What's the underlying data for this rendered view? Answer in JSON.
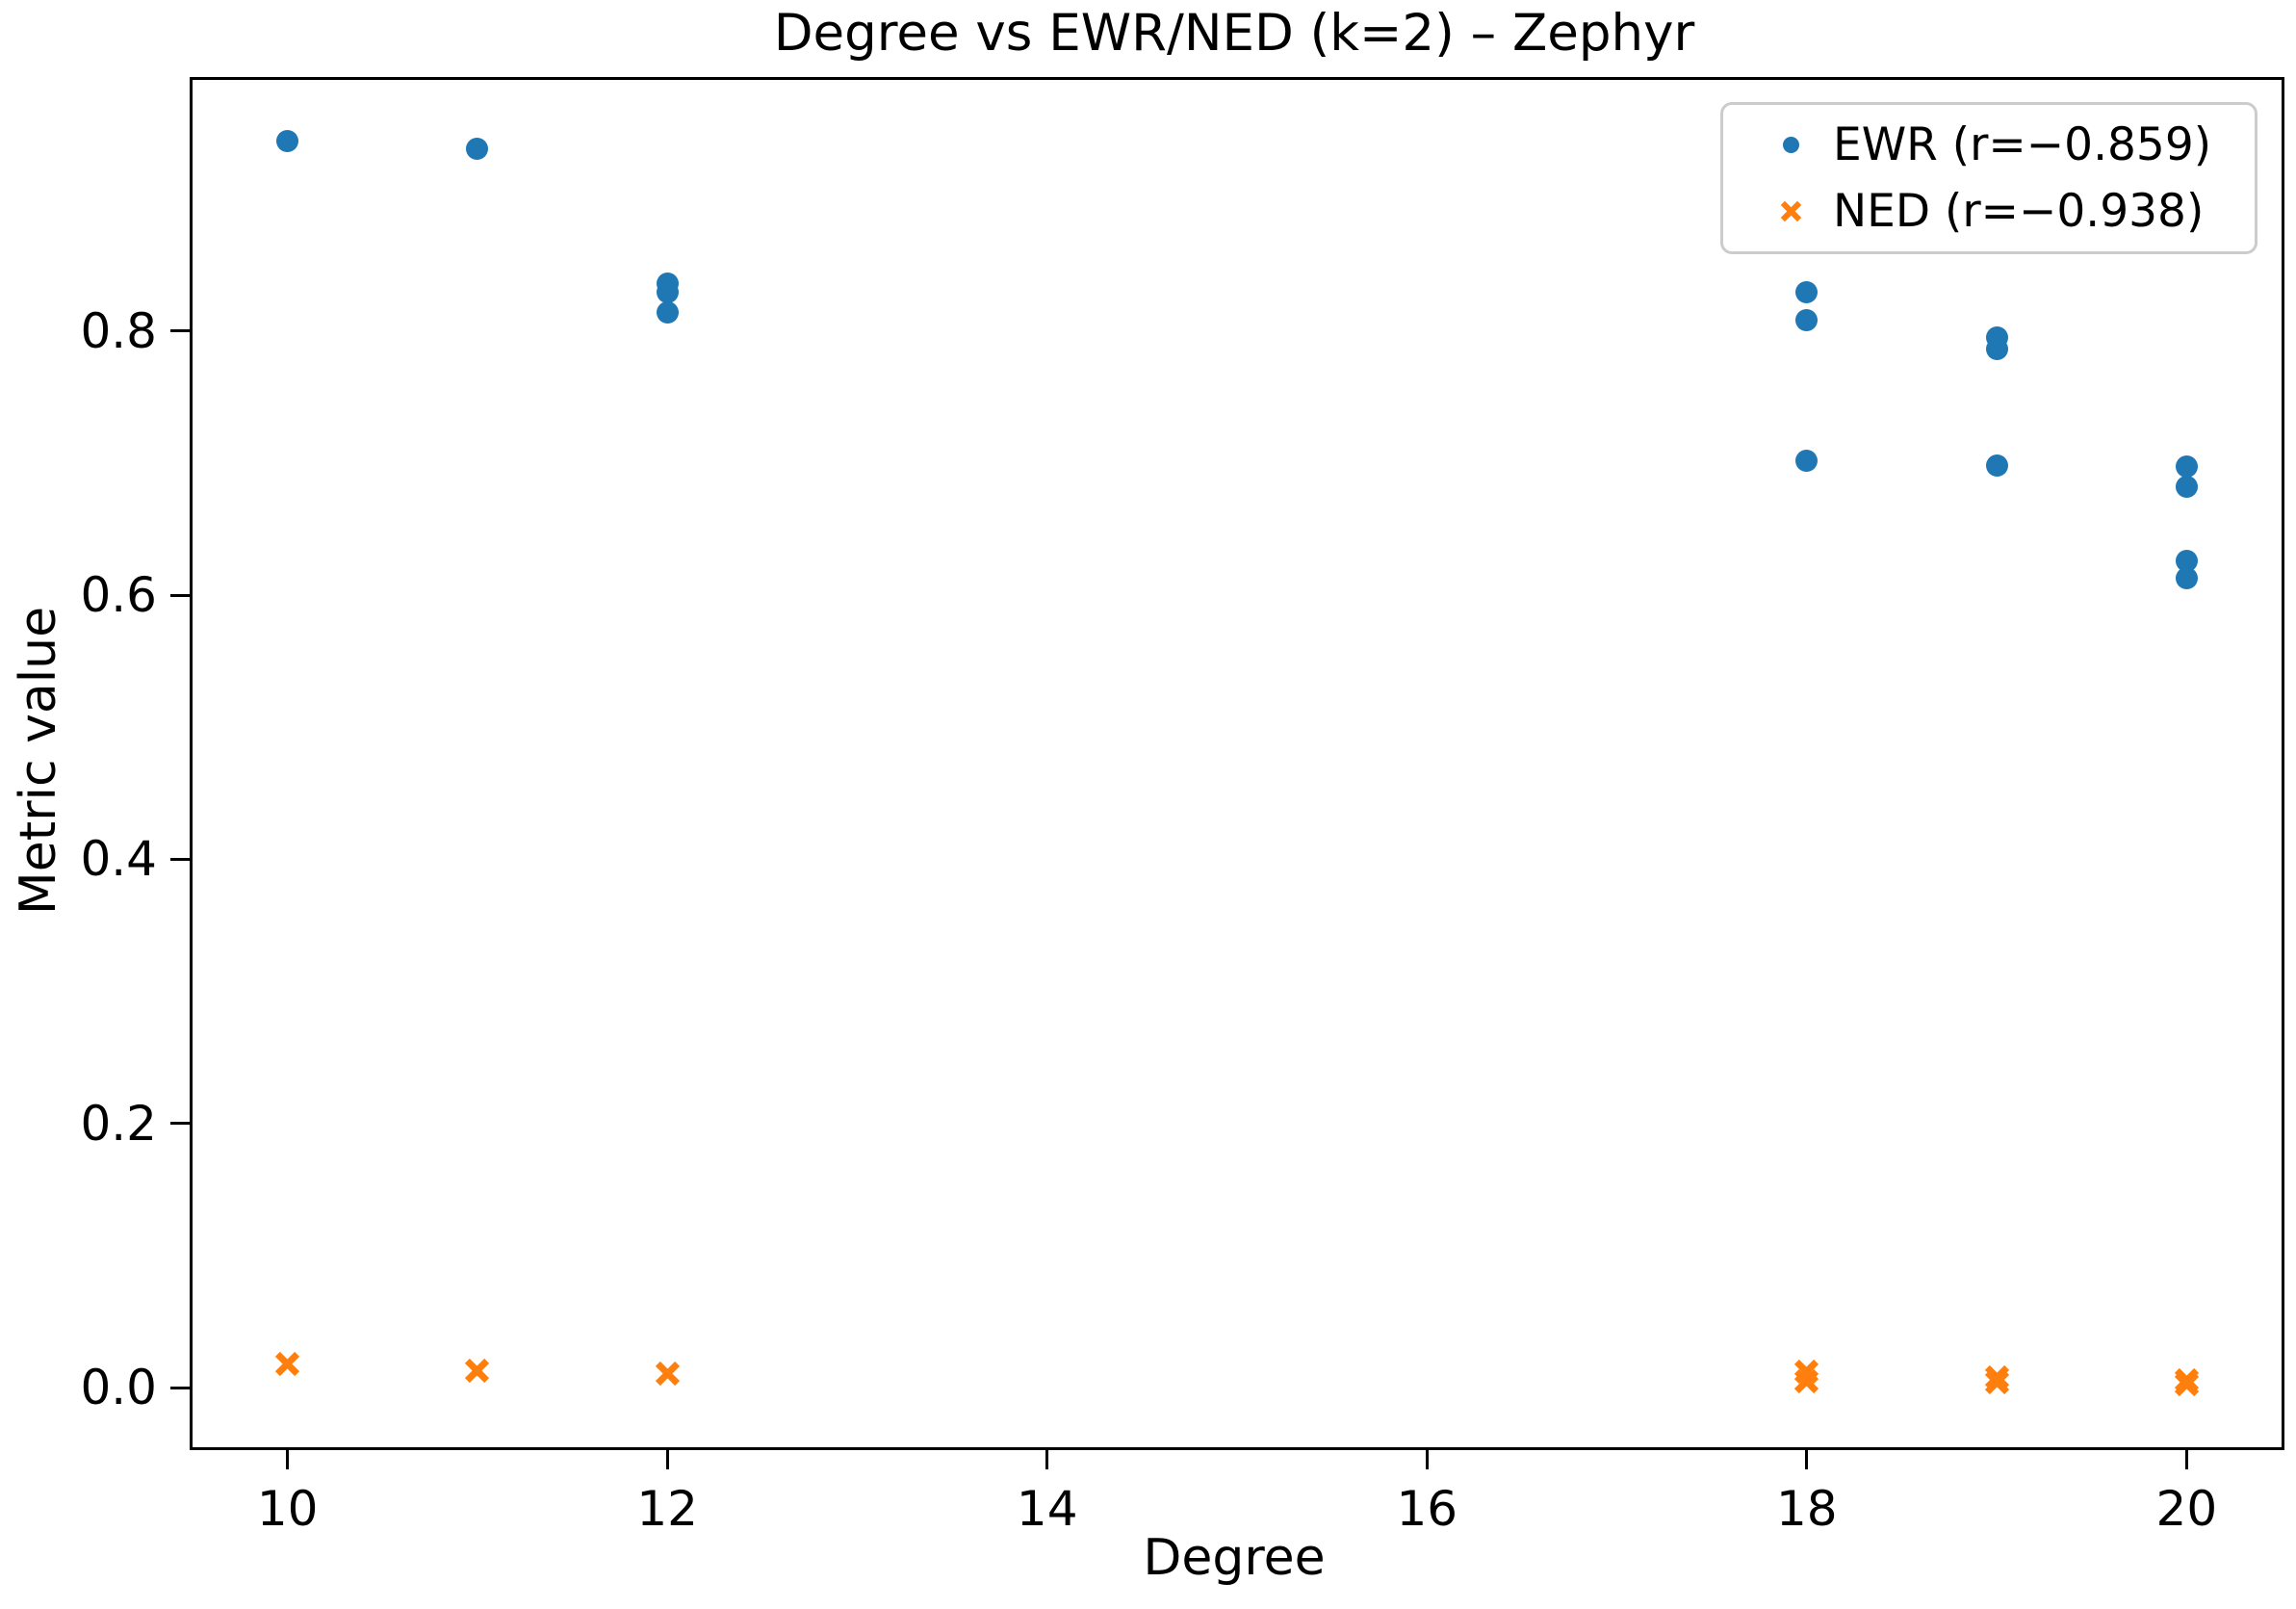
{
  "title": "Degree vs EWR/NED (k=2) – Zephyr",
  "colors": {
    "ewr_blue": "#1f77b4",
    "ned_orange": "#ff7f0e",
    "axis": "#000000",
    "legend_border": "#cccccc"
  },
  "chart_data": {
    "type": "scatter",
    "title": "Degree vs EWR/NED (k=2) – Zephyr",
    "xlabel": "Degree",
    "ylabel": "Metric value",
    "xlim": [
      9.5,
      20.5
    ],
    "ylim": [
      -0.045,
      0.99
    ],
    "grid": false,
    "legend_position": "upper right",
    "x_ticks": [
      10,
      12,
      14,
      16,
      18,
      20
    ],
    "x_tick_labels": [
      "10",
      "12",
      "14",
      "16",
      "18",
      "20"
    ],
    "y_ticks": [
      0.0,
      0.2,
      0.4,
      0.6,
      0.8
    ],
    "y_tick_labels": [
      "0.0",
      "0.2",
      "0.4",
      "0.6",
      "0.8"
    ],
    "series": [
      {
        "name": "EWR (r=−0.859)",
        "marker": "circle",
        "color": "#1f77b4",
        "points": [
          [
            10,
            0.944
          ],
          [
            11,
            0.938
          ],
          [
            12,
            0.836
          ],
          [
            12,
            0.829
          ],
          [
            12,
            0.814
          ],
          [
            18,
            0.829
          ],
          [
            18,
            0.808
          ],
          [
            18,
            0.702
          ],
          [
            19,
            0.795
          ],
          [
            19,
            0.786
          ],
          [
            19,
            0.698
          ],
          [
            20,
            0.697
          ],
          [
            20,
            0.682
          ],
          [
            20,
            0.626
          ],
          [
            20,
            0.613
          ]
        ]
      },
      {
        "name": "NED (r=−0.938)",
        "marker": "x",
        "color": "#ff7f0e",
        "points": [
          [
            10,
            0.018
          ],
          [
            11,
            0.013
          ],
          [
            12,
            0.011
          ],
          [
            18,
            0.012
          ],
          [
            18,
            0.005
          ],
          [
            19,
            0.008
          ],
          [
            19,
            0.004
          ],
          [
            20,
            0.006
          ],
          [
            20,
            0.003
          ]
        ]
      }
    ]
  }
}
